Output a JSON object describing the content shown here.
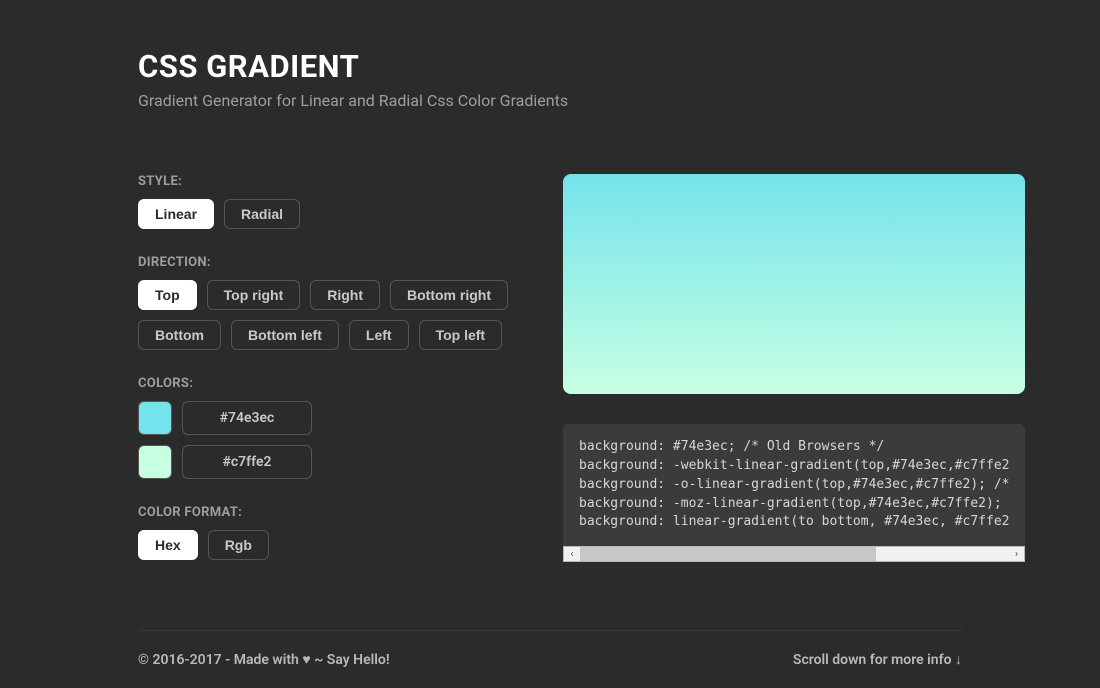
{
  "header": {
    "title": "CSS GRADIENT",
    "subtitle": "Gradient Generator for Linear and Radial Css Color Gradients"
  },
  "style": {
    "label": "STYLE:",
    "options": [
      {
        "label": "Linear",
        "active": true
      },
      {
        "label": "Radial",
        "active": false
      }
    ]
  },
  "direction": {
    "label": "DIRECTION:",
    "options": [
      {
        "label": "Top",
        "active": true
      },
      {
        "label": "Top right",
        "active": false
      },
      {
        "label": "Right",
        "active": false
      },
      {
        "label": "Bottom right",
        "active": false
      },
      {
        "label": "Bottom",
        "active": false
      },
      {
        "label": "Bottom left",
        "active": false
      },
      {
        "label": "Left",
        "active": false
      },
      {
        "label": "Top left",
        "active": false
      }
    ]
  },
  "colors": {
    "label": "COLORS:",
    "stops": [
      {
        "hex": "#74e3ec"
      },
      {
        "hex": "#c7ffe2"
      }
    ]
  },
  "format": {
    "label": "COLOR FORMAT:",
    "options": [
      {
        "label": "Hex",
        "active": true
      },
      {
        "label": "Rgb",
        "active": false
      }
    ]
  },
  "preview": {
    "gradient_css": "linear-gradient(to bottom, #74e3ec, #c7ffe2)"
  },
  "code": {
    "lines": [
      "background: #74e3ec; /* Old Browsers */",
      "background: -webkit-linear-gradient(top,#74e3ec,#c7ffe2",
      "background: -o-linear-gradient(top,#74e3ec,#c7ffe2); /*",
      "background: -moz-linear-gradient(top,#74e3ec,#c7ffe2); ",
      "background: linear-gradient(to bottom, #74e3ec, #c7ffe2"
    ],
    "scroll_thumb_percent": 69
  },
  "footer": {
    "left_prefix": "© 2016-2017 - Made with ",
    "heart": "♥",
    "left_mid": " ~ ",
    "say_hello": "Say Hello!",
    "right": "Scroll down for more info ↓"
  },
  "theme": {
    "bg": "#2b2b2b",
    "panel_bg": "#3b3b3b",
    "text_muted": "#9e9e9e",
    "text_light": "#c9c9c9",
    "white": "#ffffff",
    "border": "#555555"
  }
}
